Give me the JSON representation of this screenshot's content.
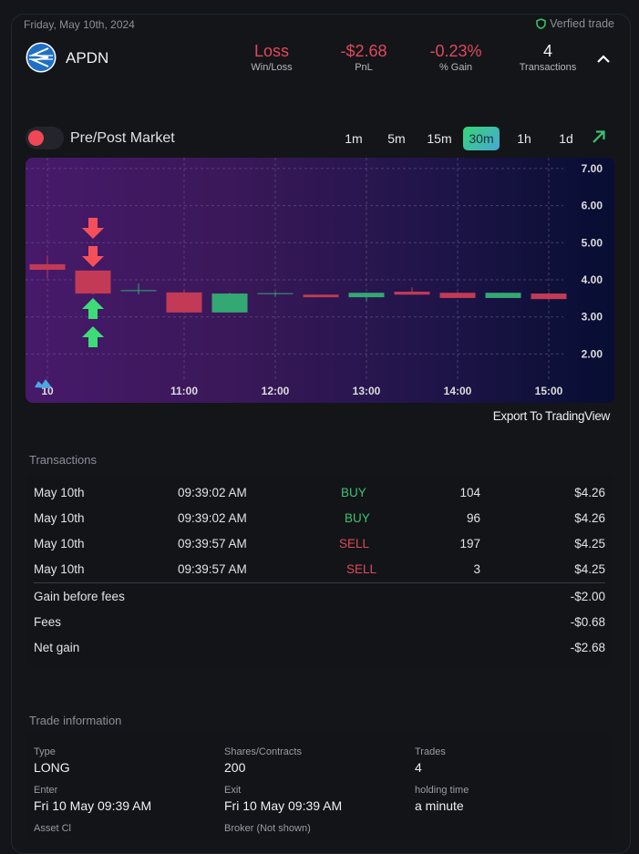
{
  "header": {
    "date": "Friday, May 10th, 2024",
    "verified_label": "Verfied trade",
    "ticker": "APDN",
    "stats": [
      {
        "value": "Loss",
        "label": "Win/Loss",
        "tone": "negative"
      },
      {
        "value": "-$2.68",
        "label": "PnL",
        "tone": "negative"
      },
      {
        "value": "-0.23%",
        "label": "% Gain",
        "tone": "negative"
      },
      {
        "value": "4",
        "label": "Transactions",
        "tone": "neutral"
      }
    ]
  },
  "controls": {
    "pre_post_label": "Pre/Post Market",
    "pre_post_enabled": false,
    "timeframes": [
      "1m",
      "5m",
      "15m",
      "30m",
      "1h",
      "1d"
    ],
    "active_timeframe": "30m",
    "export_label": "Export To TradingView"
  },
  "colors": {
    "up": "#34a873",
    "down": "#c23a55",
    "negative_text": "#e0495a",
    "positive_text": "#3dc46f",
    "buy_marker": "#3ddc78",
    "sell_marker": "#f5505a"
  },
  "chart_data": {
    "type": "candlestick",
    "interval": "30m",
    "ylim": [
      1.5,
      7.0
    ],
    "yticks": [
      "7.00",
      "6.00",
      "5.00",
      "4.00",
      "3.00",
      "2.00"
    ],
    "ytick_values": [
      7,
      6,
      5,
      4,
      3,
      2
    ],
    "xticks": [
      {
        "label": "10",
        "index": 0
      },
      {
        "label": "11:00",
        "index": 3
      },
      {
        "label": "12:00",
        "index": 5
      },
      {
        "label": "13:00",
        "index": 7
      },
      {
        "label": "14:00",
        "index": 9
      },
      {
        "label": "15:00",
        "index": 11
      }
    ],
    "grid": true,
    "candles": [
      {
        "o": 4.42,
        "h": 4.66,
        "l": 4.05,
        "c": 4.27
      },
      {
        "o": 4.25,
        "h": 4.25,
        "l": 3.6,
        "c": 3.63
      },
      {
        "o": 3.71,
        "h": 3.9,
        "l": 3.61,
        "c": 3.72
      },
      {
        "o": 3.66,
        "h": 3.73,
        "l": 3.12,
        "c": 3.12
      },
      {
        "o": 3.12,
        "h": 3.65,
        "l": 3.12,
        "c": 3.63
      },
      {
        "o": 3.62,
        "h": 3.67,
        "l": 3.55,
        "c": 3.64
      },
      {
        "o": 3.6,
        "h": 3.6,
        "l": 3.53,
        "c": 3.53
      },
      {
        "o": 3.53,
        "h": 3.65,
        "l": 3.43,
        "c": 3.65
      },
      {
        "o": 3.68,
        "h": 3.8,
        "l": 3.6,
        "c": 3.6
      },
      {
        "o": 3.65,
        "h": 3.67,
        "l": 3.51,
        "c": 3.51
      },
      {
        "o": 3.51,
        "h": 3.65,
        "l": 3.51,
        "c": 3.65
      },
      {
        "o": 3.63,
        "h": 3.66,
        "l": 3.46,
        "c": 3.48
      }
    ],
    "markers": [
      {
        "index": 1,
        "side": "sell",
        "count": 2
      },
      {
        "index": 1,
        "side": "buy",
        "count": 2
      }
    ]
  },
  "transactions": {
    "title": "Transactions",
    "rows": [
      {
        "date": "May 10th",
        "time": "09:39:02 AM",
        "side": "BUY",
        "qty": "104",
        "price": "$4.26"
      },
      {
        "date": "May 10th",
        "time": "09:39:02 AM",
        "side": "BUY",
        "qty": "96",
        "price": "$4.26"
      },
      {
        "date": "May 10th",
        "time": "09:39:57 AM",
        "side": "SELL",
        "qty": "197",
        "price": "$4.25"
      },
      {
        "date": "May 10th",
        "time": "09:39:57 AM",
        "side": "SELL",
        "qty": "3",
        "price": "$4.25"
      }
    ],
    "summary": [
      {
        "label": "Gain before fees",
        "value": "-$2.00"
      },
      {
        "label": "Fees",
        "value": "-$0.68"
      },
      {
        "label": "Net gain",
        "value": "-$2.68"
      }
    ]
  },
  "trade_info": {
    "title": "Trade information",
    "fields": [
      {
        "label": "Type",
        "value": "LONG"
      },
      {
        "label": "Shares/Contracts",
        "value": "200"
      },
      {
        "label": "Trades",
        "value": "4"
      },
      {
        "label": "Enter",
        "value": "Fri 10 May 09:39 AM"
      },
      {
        "label": "Exit",
        "value": "Fri 10 May 09:39 AM"
      },
      {
        "label": "holding time",
        "value": "a minute"
      }
    ],
    "partial_labels": [
      "Asset Cl",
      "Broker (Not shown)"
    ]
  }
}
